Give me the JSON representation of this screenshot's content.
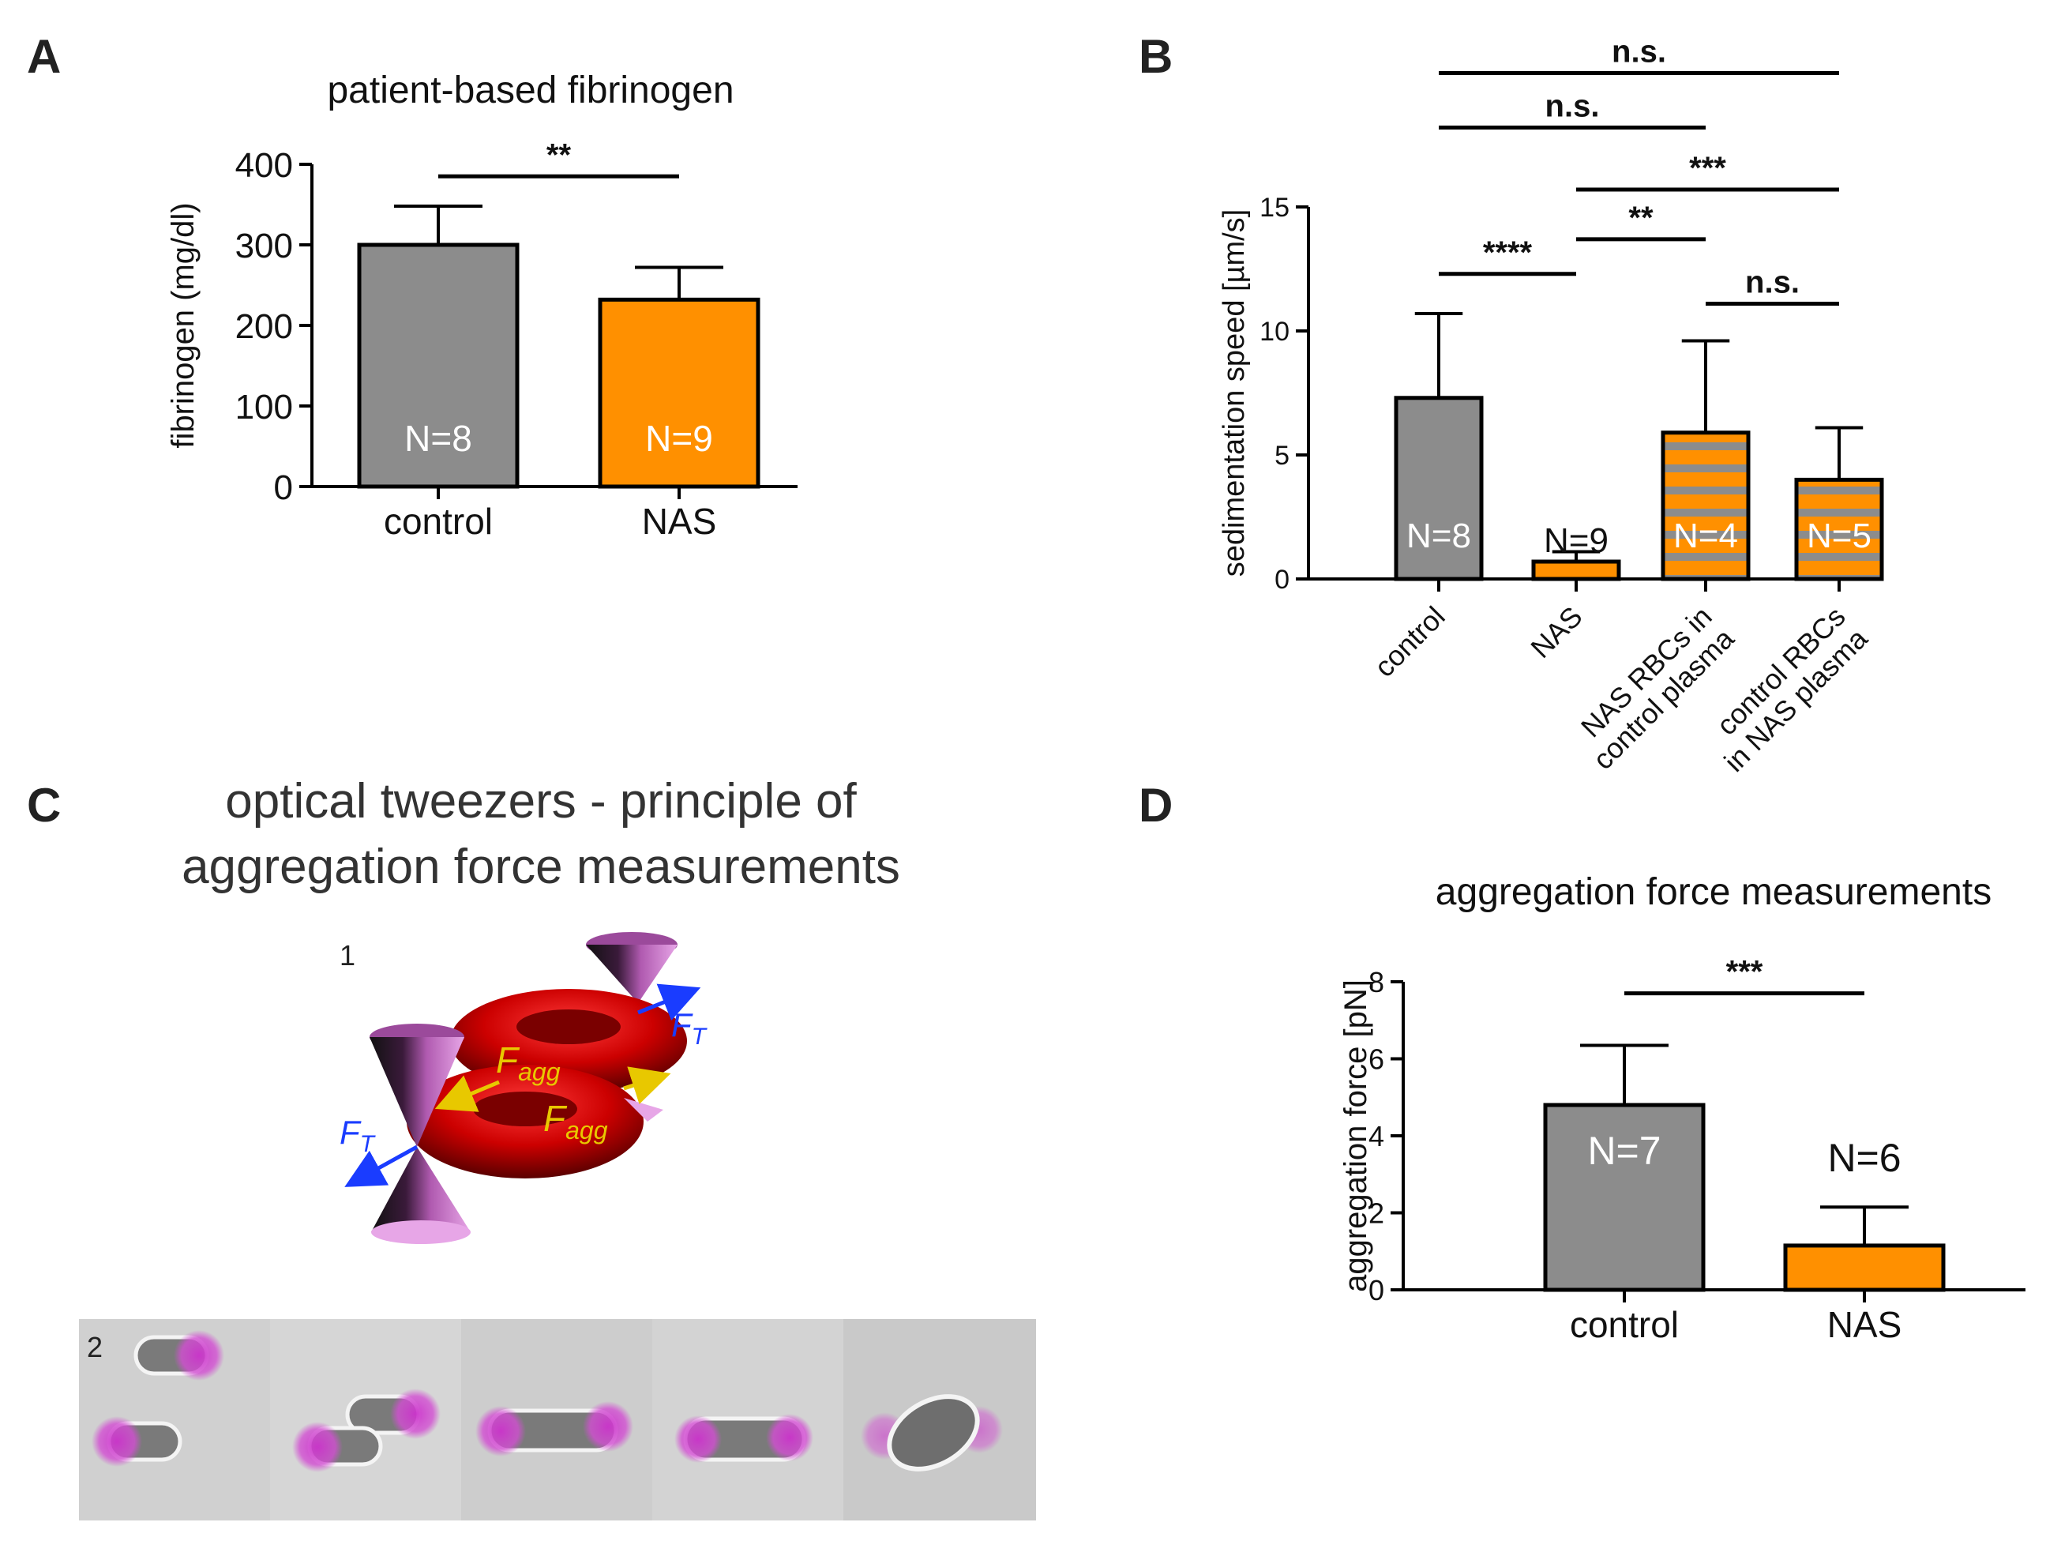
{
  "colors": {
    "control": "#8c8c8c",
    "nas": "#ff9000",
    "stripe": "#8c8c8c",
    "axis": "#000000",
    "rbc_red": "#cc0000",
    "cone": "#9b4a9b",
    "force_text": "#e8c800",
    "force_arrow": "#1a3cff",
    "micro_bg": "#cfcfcf",
    "magenta": "#cc33cc"
  },
  "panels": {
    "A": {
      "letter": "A"
    },
    "B": {
      "letter": "B"
    },
    "C": {
      "letter": "C"
    },
    "D": {
      "letter": "D"
    }
  },
  "chart_data": [
    {
      "id": "A",
      "type": "bar",
      "title": "patient-based fibrinogen",
      "ylabel": "fibrinogen (mg/dl)",
      "xlabel": "",
      "ylim": [
        0,
        400
      ],
      "yticks": [
        0,
        100,
        200,
        300,
        400
      ],
      "categories": [
        "control",
        "NAS"
      ],
      "values": [
        300,
        232
      ],
      "errors": [
        48,
        40
      ],
      "n_labels": [
        "N=8",
        "N=9"
      ],
      "fills": [
        "control",
        "nas"
      ],
      "significance": [
        {
          "from": 0,
          "to": 1,
          "label": "**",
          "y": 385
        }
      ]
    },
    {
      "id": "B",
      "type": "bar",
      "title": "",
      "ylabel": "sedimentation speed [µm/s]",
      "xlabel": "",
      "ylim": [
        0,
        15
      ],
      "yticks": [
        0,
        5,
        10,
        15
      ],
      "categories": [
        "control",
        "NAS",
        "NAS RBCs in\ncontrol plasma",
        "control RBCs\nin NAS plasma"
      ],
      "values": [
        7.3,
        0.7,
        5.9,
        4.0
      ],
      "errors": [
        3.4,
        0.4,
        3.7,
        2.1
      ],
      "n_labels": [
        "N=8",
        "N=9",
        "N=4",
        "N=5"
      ],
      "fills": [
        "control",
        "nas",
        "striped",
        "striped"
      ],
      "significance": [
        {
          "from": 0,
          "to": 3,
          "label": "n.s.",
          "y": 20.4
        },
        {
          "from": 0,
          "to": 2,
          "label": "n.s.",
          "y": 18.2
        },
        {
          "from": 1,
          "to": 3,
          "label": "***",
          "y": 15.7
        },
        {
          "from": 1,
          "to": 2,
          "label": "**",
          "y": 13.7
        },
        {
          "from": 0,
          "to": 1,
          "label": "****",
          "y": 12.3
        },
        {
          "from": 2,
          "to": 3,
          "label": "n.s.",
          "y": 11.1
        }
      ]
    },
    {
      "id": "D",
      "type": "bar",
      "title": "aggregation force measurements",
      "ylabel": "aggregation force [pN]",
      "xlabel": "",
      "ylim": [
        0,
        8
      ],
      "yticks": [
        0,
        2,
        4,
        6,
        8
      ],
      "categories": [
        "control",
        "NAS"
      ],
      "values": [
        4.8,
        1.15
      ],
      "errors": [
        1.55,
        1.0
      ],
      "n_labels": [
        "N=7",
        "N=6"
      ],
      "fills": [
        "control",
        "nas"
      ],
      "significance": [
        {
          "from": 0,
          "to": 1,
          "label": "***",
          "y": 7.7
        }
      ]
    }
  ],
  "diagram": {
    "title_line1": "optical tweezers - principle of",
    "title_line2": "aggregation force measurements",
    "step1": "1",
    "step2": "2",
    "force_agg": "F",
    "force_agg_sub": "agg",
    "force_trap": "F",
    "force_trap_sub": "T"
  }
}
